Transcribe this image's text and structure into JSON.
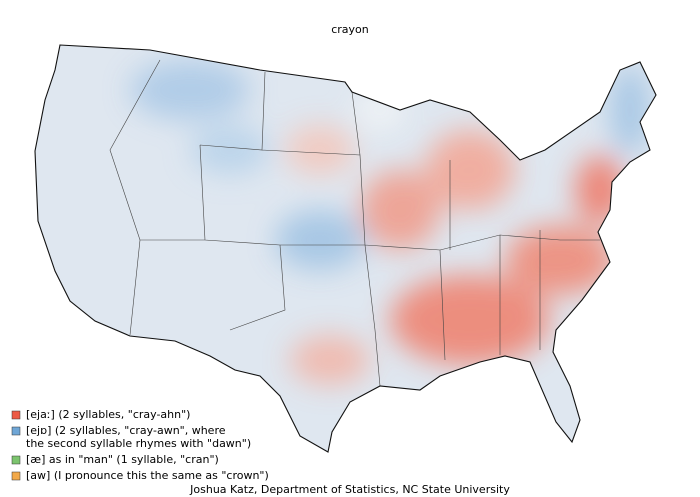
{
  "title": "crayon",
  "legend": [
    {
      "color": "#ec5a45",
      "lines": [
        "[ejaː] (2 syllables, \"cray-ahn\")"
      ]
    },
    {
      "color": "#6fa6d6",
      "lines": [
        "[ejɒ] (2 syllables, \"cray-awn\", where",
        "the second syllable rhymes with \"dawn\")"
      ]
    },
    {
      "color": "#7cc46e",
      "lines": [
        "[æ] as in \"man\" (1 syllable, \"cran\")"
      ]
    },
    {
      "color": "#f2a94a",
      "lines": [
        "[aw] (I pronounce this the same as \"crown\")"
      ]
    }
  ],
  "credit": "Joshua Katz, Department of Statistics, NC State University"
}
